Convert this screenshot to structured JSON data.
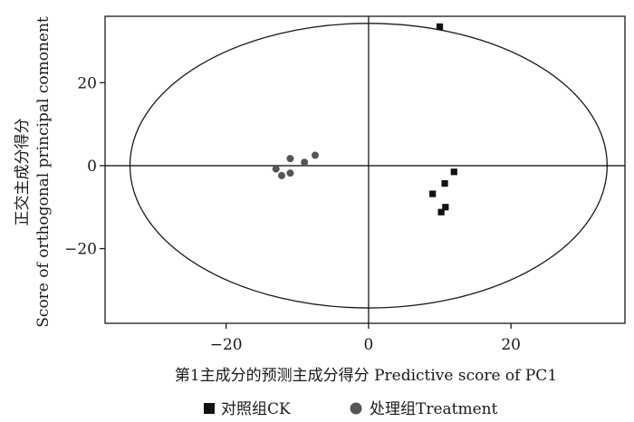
{
  "chart_data": {
    "type": "scatter",
    "title": "",
    "xlabel": "第1主成分的预测主成分得分  Predictive score of PC1",
    "ylabel_cn": "正交主成分得分",
    "ylabel_en": "Score of orthogonal principal comonent",
    "xlim": [
      -37,
      36
    ],
    "ylim": [
      -38,
      36
    ],
    "x_ticks": [
      -20,
      0,
      20
    ],
    "y_ticks": [
      -20,
      0,
      20
    ],
    "x_tick_labels": [
      "−20",
      "0",
      "20"
    ],
    "y_tick_labels": [
      "−20",
      "0",
      "20"
    ],
    "grid": false,
    "legend_position": "bottom",
    "confidence_ellipse": {
      "center": [
        0,
        0
      ],
      "semi_x": 33.5,
      "semi_y": 34.3
    },
    "series": [
      {
        "name": "对照组CK",
        "marker": "square",
        "color": "#111111",
        "points": [
          [
            10,
            33.5
          ],
          [
            12,
            -1.5
          ],
          [
            10.7,
            -4.3
          ],
          [
            9,
            -6.8
          ],
          [
            10.8,
            -10
          ],
          [
            10.2,
            -11.2
          ]
        ]
      },
      {
        "name": "处理组Treatment",
        "marker": "circle",
        "color": "#555555",
        "points": [
          [
            -7.5,
            2.5
          ],
          [
            -11,
            1.7
          ],
          [
            -9,
            0.8
          ],
          [
            -13,
            -0.8
          ],
          [
            -11,
            -1.8
          ],
          [
            -12.2,
            -2.4
          ]
        ]
      }
    ]
  }
}
